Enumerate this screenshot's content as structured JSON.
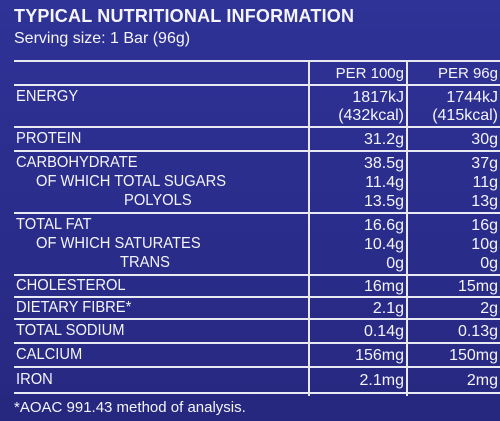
{
  "title": "TYPICAL NUTRITIONAL INFORMATION",
  "serving": "Serving size: 1 Bar (96g)",
  "headers": {
    "per100": "PER 100g",
    "perServing": "PER 96g"
  },
  "rows": {
    "energy": {
      "label": "ENERGY",
      "v1": "1817kJ",
      "v1b": "(432kcal)",
      "v2": "1744kJ",
      "v2b": "(415kcal)"
    },
    "protein": {
      "label": "PROTEIN",
      "v1": "31.2g",
      "v2": "30g"
    },
    "carb": {
      "label": "CARBOHYDRATE",
      "v1": "38.5g",
      "v2": "37g"
    },
    "sugars": {
      "label": "OF WHICH TOTAL SUGARS",
      "v1": "11.4g",
      "v2": "11g"
    },
    "polyols": {
      "label": "POLYOLS",
      "v1": "13.5g",
      "v2": "13g"
    },
    "fat": {
      "label": "TOTAL FAT",
      "v1": "16.6g",
      "v2": "16g"
    },
    "saturates": {
      "label": "OF WHICH SATURATES",
      "v1": "10.4g",
      "v2": "10g"
    },
    "trans": {
      "label": "TRANS",
      "v1": "0g",
      "v2": "0g"
    },
    "cholesterol": {
      "label": "CHOLESTEROL",
      "v1": "16mg",
      "v2": "15mg"
    },
    "fibre": {
      "label": "DIETARY FIBRE*",
      "v1": "2.1g",
      "v2": "2g"
    },
    "sodium": {
      "label": "TOTAL SODIUM",
      "v1": "0.14g",
      "v2": "0.13g"
    },
    "calcium": {
      "label": "CALCIUM",
      "v1": "156mg",
      "v2": "150mg"
    },
    "iron": {
      "label": "IRON",
      "v1": "2.1mg",
      "v2": "2mg"
    }
  },
  "footnote": "*AOAC 991.43 method of analysis."
}
